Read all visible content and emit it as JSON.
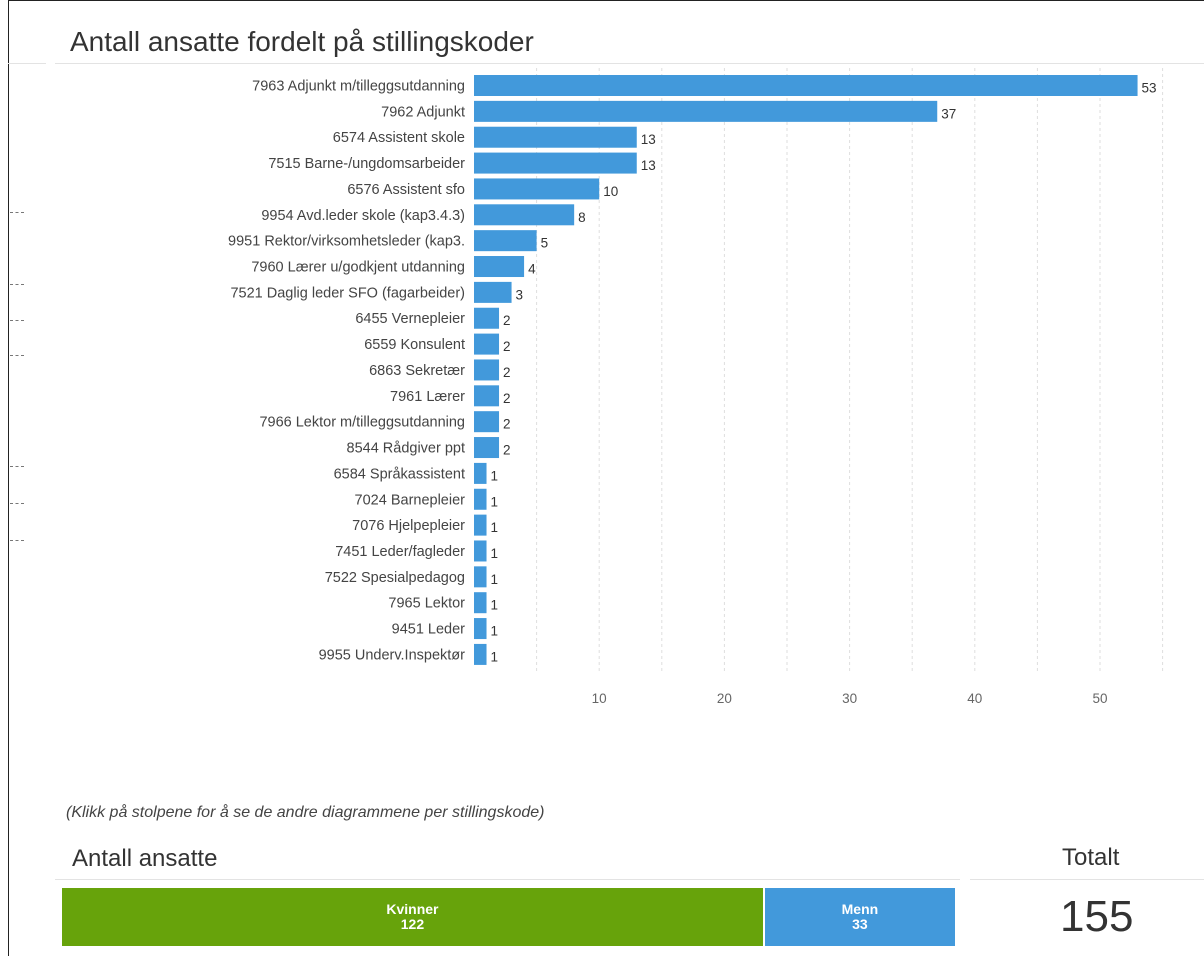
{
  "colors": {
    "bar": "#4299DB",
    "women": "#67A30B",
    "men": "#4299DB",
    "grid": "#dedede"
  },
  "chart_data": {
    "type": "bar",
    "orientation": "horizontal",
    "title": "Antall ansatte fordelt på stillingskoder",
    "categories": [
      "7963 Adjunkt m/tilleggsutdanning",
      "7962 Adjunkt",
      "6574 Assistent skole",
      "7515 Barne-/ungdomsarbeider",
      "6576 Assistent sfo",
      "9954 Avd.leder skole (kap3.4.3)",
      "9951 Rektor/virksomhetsleder (kap3.",
      "7960 Lærer u/godkjent utdanning",
      "7521 Daglig leder SFO (fagarbeider)",
      "6455 Vernepleier",
      "6559 Konsulent",
      "6863 Sekretær",
      "7961 Lærer",
      "7966 Lektor m/tilleggsutdanning",
      "8544 Rådgiver ppt",
      "6584 Språkassistent",
      "7024 Barnepleier",
      "7076 Hjelpepleier",
      "7451 Leder/fagleder",
      "7522 Spesialpedagog",
      "7965 Lektor",
      "9451 Leder",
      "9955 Underv.Inspektør"
    ],
    "values": [
      53,
      37,
      13,
      13,
      10,
      8,
      5,
      4,
      3,
      2,
      2,
      2,
      2,
      2,
      2,
      1,
      1,
      1,
      1,
      1,
      1,
      1,
      1
    ],
    "xlim": [
      0,
      55
    ],
    "xticks": [
      10,
      20,
      30,
      40,
      50
    ],
    "xlabel": "",
    "ylabel": "",
    "grid": true,
    "data_labels": true
  },
  "hint": "(Klikk på stolpene for å se de andre diagrammene per stillingskode)",
  "summary": {
    "title": "Antall ansatte",
    "total_title": "Totalt",
    "total_value": "155",
    "segments": [
      {
        "label": "Kvinner",
        "value": 122
      },
      {
        "label": "Menn",
        "value": 33
      }
    ]
  }
}
